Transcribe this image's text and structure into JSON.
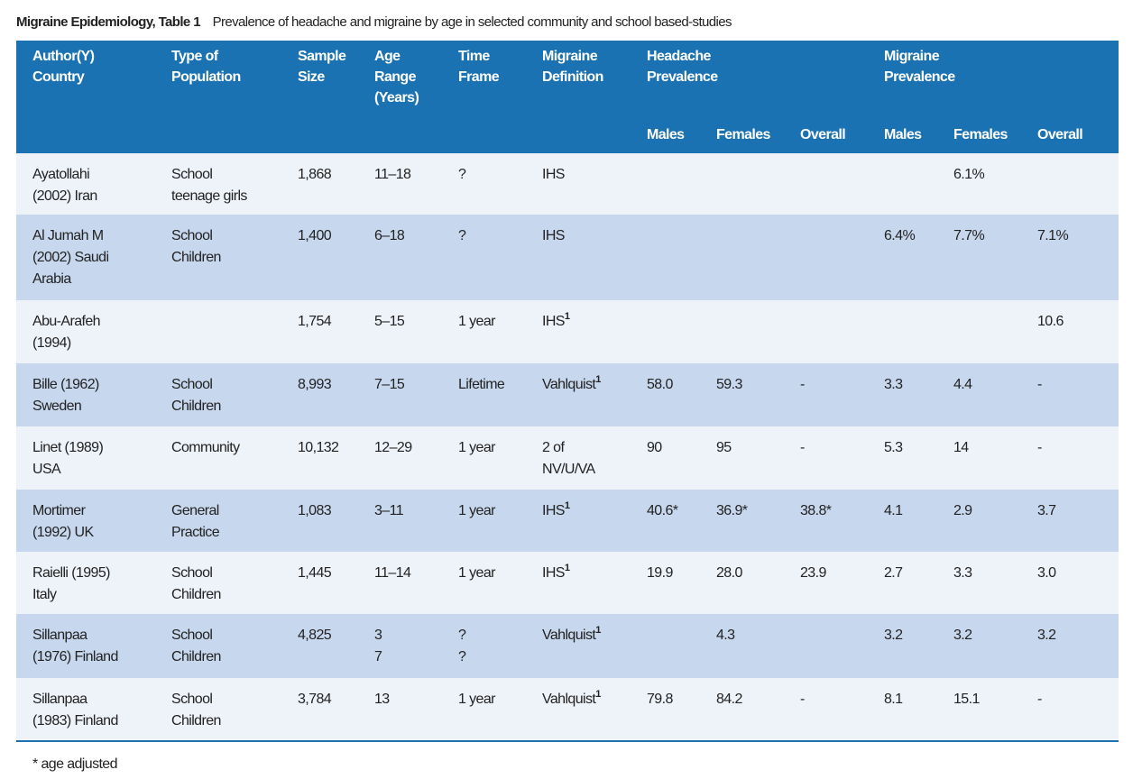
{
  "title": {
    "label": "Migraine Epidemiology, Table 1",
    "caption": "Prevalence of headache and migraine by age in selected community and school based-studies"
  },
  "table": {
    "columns": [
      [
        "Author(Y)",
        "Country"
      ],
      [
        "Type of",
        "Population"
      ],
      [
        "Sample",
        "Size"
      ],
      [
        "Age",
        "Range",
        "(Years)"
      ],
      [
        "Time",
        "Frame"
      ],
      [
        "Migraine",
        "Definition"
      ]
    ],
    "groups": [
      [
        "Headache",
        "Prevalence"
      ],
      [
        "Migraine",
        "Prevalence"
      ]
    ],
    "subcolumns": [
      "Males",
      "Females",
      "Overall",
      "Males",
      "Females",
      "Overall"
    ],
    "rows": [
      [
        {
          "lines": [
            "Ayatollahi",
            "(2002) Iran"
          ]
        },
        {
          "lines": [
            "School",
            "teenage girls"
          ]
        },
        {
          "lines": [
            "1,868"
          ]
        },
        {
          "lines": [
            "11–18"
          ]
        },
        {
          "lines": [
            "?"
          ]
        },
        {
          "lines": [
            "IHS"
          ]
        },
        null,
        null,
        null,
        null,
        {
          "lines": [
            "6.1%"
          ]
        },
        null
      ],
      [
        {
          "lines": [
            "Al Jumah M",
            "(2002) Saudi",
            "Arabia"
          ]
        },
        {
          "lines": [
            "School",
            "Children"
          ]
        },
        {
          "lines": [
            "1,400"
          ]
        },
        {
          "lines": [
            "6–18"
          ]
        },
        {
          "lines": [
            "?"
          ]
        },
        {
          "lines": [
            "IHS"
          ]
        },
        null,
        null,
        null,
        {
          "lines": [
            "6.4%"
          ]
        },
        {
          "lines": [
            "7.7%"
          ]
        },
        {
          "lines": [
            "7.1%"
          ]
        }
      ],
      [
        {
          "lines": [
            "Abu-Arafeh",
            "(1994)"
          ]
        },
        null,
        {
          "lines": [
            "1,754"
          ]
        },
        {
          "lines": [
            "5–15"
          ]
        },
        {
          "lines": [
            "1 year"
          ]
        },
        {
          "lines": [
            "IHS"
          ],
          "sup": "1"
        },
        null,
        null,
        null,
        null,
        null,
        {
          "lines": [
            "10.6"
          ]
        }
      ],
      [
        {
          "lines": [
            "Bille (1962)",
            "Sweden"
          ]
        },
        {
          "lines": [
            "School",
            "Children"
          ]
        },
        {
          "lines": [
            "8,993"
          ]
        },
        {
          "lines": [
            "7–15"
          ]
        },
        {
          "lines": [
            "Lifetime"
          ]
        },
        {
          "lines": [
            "Vahlquist"
          ],
          "sup": "1"
        },
        {
          "lines": [
            "58.0"
          ]
        },
        {
          "lines": [
            "59.3"
          ]
        },
        {
          "lines": [
            "-"
          ]
        },
        {
          "lines": [
            "3.3"
          ]
        },
        {
          "lines": [
            "4.4"
          ]
        },
        {
          "lines": [
            "-"
          ]
        }
      ],
      [
        {
          "lines": [
            "Linet (1989)",
            "USA"
          ]
        },
        {
          "lines": [
            "Community"
          ]
        },
        {
          "lines": [
            "10,132"
          ]
        },
        {
          "lines": [
            "12–29"
          ]
        },
        {
          "lines": [
            "1 year"
          ]
        },
        {
          "lines": [
            "2 of",
            "NV/U/VA"
          ]
        },
        {
          "lines": [
            "90"
          ]
        },
        {
          "lines": [
            "95"
          ]
        },
        {
          "lines": [
            "-"
          ]
        },
        {
          "lines": [
            "5.3"
          ]
        },
        {
          "lines": [
            "14"
          ]
        },
        {
          "lines": [
            "-"
          ]
        }
      ],
      [
        {
          "lines": [
            "Mortimer",
            "(1992) UK"
          ]
        },
        {
          "lines": [
            "General",
            "Practice"
          ]
        },
        {
          "lines": [
            "1,083"
          ]
        },
        {
          "lines": [
            "3–11"
          ]
        },
        {
          "lines": [
            "1 year"
          ]
        },
        {
          "lines": [
            "IHS"
          ],
          "sup": "1"
        },
        {
          "lines": [
            "40.6*"
          ]
        },
        {
          "lines": [
            "36.9*"
          ]
        },
        {
          "lines": [
            "38.8*"
          ]
        },
        {
          "lines": [
            "4.1"
          ]
        },
        {
          "lines": [
            "2.9"
          ]
        },
        {
          "lines": [
            "3.7"
          ]
        }
      ],
      [
        {
          "lines": [
            "Raielli (1995)",
            "Italy"
          ]
        },
        {
          "lines": [
            "School",
            "Children"
          ]
        },
        {
          "lines": [
            "1,445"
          ]
        },
        {
          "lines": [
            "11–14"
          ]
        },
        {
          "lines": [
            "1 year"
          ]
        },
        {
          "lines": [
            "IHS"
          ],
          "sup": "1"
        },
        {
          "lines": [
            "19.9"
          ]
        },
        {
          "lines": [
            "28.0"
          ]
        },
        {
          "lines": [
            "23.9"
          ]
        },
        {
          "lines": [
            "2.7"
          ]
        },
        {
          "lines": [
            "3.3"
          ]
        },
        {
          "lines": [
            "3.0"
          ]
        }
      ],
      [
        {
          "lines": [
            "Sillanpaa",
            "(1976) Finland"
          ]
        },
        {
          "lines": [
            "School",
            "Children"
          ]
        },
        {
          "lines": [
            "4,825"
          ]
        },
        {
          "lines": [
            "3",
            "7"
          ]
        },
        {
          "lines": [
            "?",
            "?"
          ]
        },
        {
          "lines": [
            "Vahlquist"
          ],
          "sup": "1"
        },
        null,
        {
          "lines": [
            "4.3"
          ]
        },
        null,
        {
          "lines": [
            "3.2"
          ]
        },
        {
          "lines": [
            "3.2"
          ]
        },
        {
          "lines": [
            "3.2"
          ]
        }
      ],
      [
        {
          "lines": [
            "Sillanpaa",
            "(1983) Finland"
          ]
        },
        {
          "lines": [
            "School",
            "Children"
          ]
        },
        {
          "lines": [
            "3,784"
          ]
        },
        {
          "lines": [
            "13"
          ]
        },
        {
          "lines": [
            "1 year"
          ]
        },
        {
          "lines": [
            "Vahlquist"
          ],
          "sup": "1"
        },
        {
          "lines": [
            "79.8"
          ]
        },
        {
          "lines": [
            "84.2"
          ]
        },
        {
          "lines": [
            "-"
          ]
        },
        {
          "lines": [
            "8.1"
          ]
        },
        {
          "lines": [
            "15.1"
          ]
        },
        {
          "lines": [
            "-"
          ]
        }
      ]
    ]
  },
  "footnote": "* age adjusted"
}
